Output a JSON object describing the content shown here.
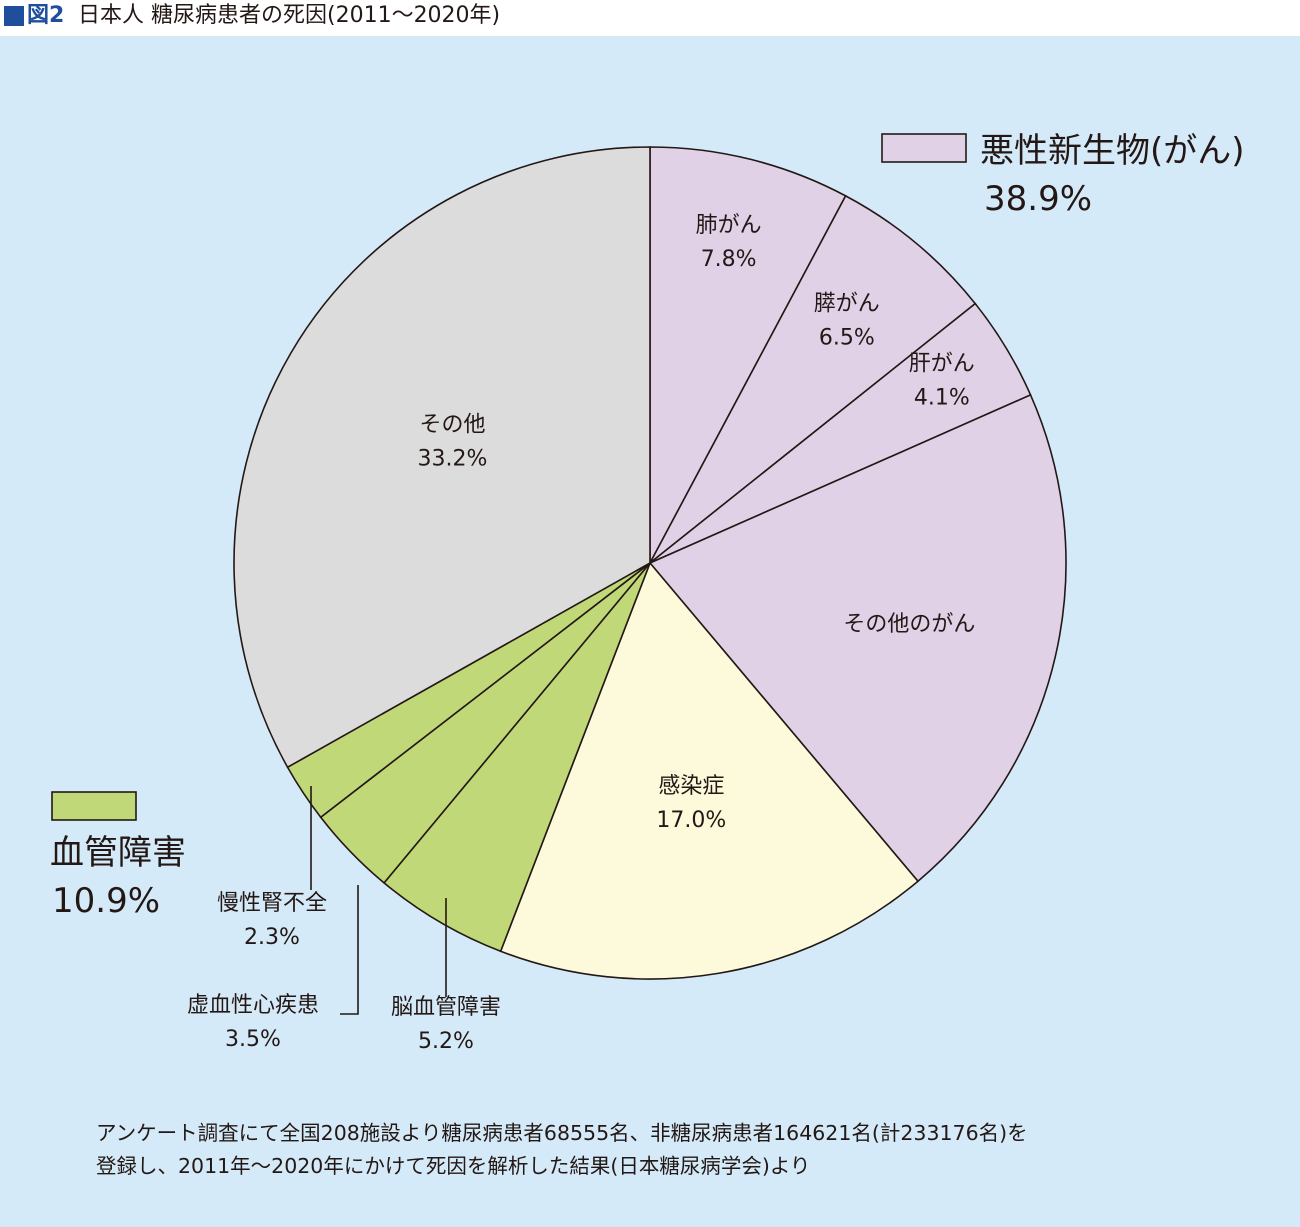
{
  "header": {
    "figure_number": "図2",
    "title": "日本人 糖尿病患者の死因(2011〜2020年)"
  },
  "chart_data": {
    "type": "pie",
    "title": "日本人 糖尿病患者の死因(2011〜2020年)",
    "start": "12 o'clock",
    "direction": "clockwise",
    "slices": [
      {
        "label": "肺がん",
        "value": 7.8,
        "value_label": "7.8%",
        "group": "悪性新生物(がん)",
        "color": "#e0d1e7"
      },
      {
        "label": "膵がん",
        "value": 6.5,
        "value_label": "6.5%",
        "group": "悪性新生物(がん)",
        "color": "#e0d1e7"
      },
      {
        "label": "肝がん",
        "value": 4.1,
        "value_label": "4.1%",
        "group": "悪性新生物(がん)",
        "color": "#e0d1e7"
      },
      {
        "label": "その他のがん",
        "value": 20.5,
        "value_label": "",
        "group": "悪性新生物(がん)",
        "color": "#e0d1e7"
      },
      {
        "label": "感染症",
        "value": 17.0,
        "value_label": "17.0%",
        "group": "",
        "color": "#fdf9db"
      },
      {
        "label": "脳血管障害",
        "value": 5.2,
        "value_label": "5.2%",
        "group": "血管障害",
        "color": "#c0d878"
      },
      {
        "label": "虚血性心疾患",
        "value": 3.5,
        "value_label": "3.5%",
        "group": "血管障害",
        "color": "#c0d878"
      },
      {
        "label": "慢性腎不全",
        "value": 2.3,
        "value_label": "2.3%",
        "group": "血管障害",
        "color": "#c0d878"
      },
      {
        "label": "その他",
        "value": 33.2,
        "value_label": "33.2%",
        "group": "",
        "color": "#dcdcdc"
      }
    ],
    "groups": [
      {
        "name": "悪性新生物(がん)",
        "value_label": "38.9%",
        "color": "#e0d1e7",
        "legend_position": "top-right"
      },
      {
        "name": "血管障害",
        "value_label": "10.9%",
        "color": "#c0d878",
        "legend_position": "bottom-left"
      }
    ]
  },
  "footnote": {
    "line1": "アンケート調査にて全国208施設より糖尿病患者68555名、非糖尿病患者164621名(計233176名)を",
    "line2": "登録し、2011年〜2020年にかけて死因を解析した結果(日本糖尿病学会)より"
  },
  "colors": {
    "panel_background": "#d5eaf8",
    "title_accent": "#1f4e9c",
    "outline": "#231815"
  }
}
